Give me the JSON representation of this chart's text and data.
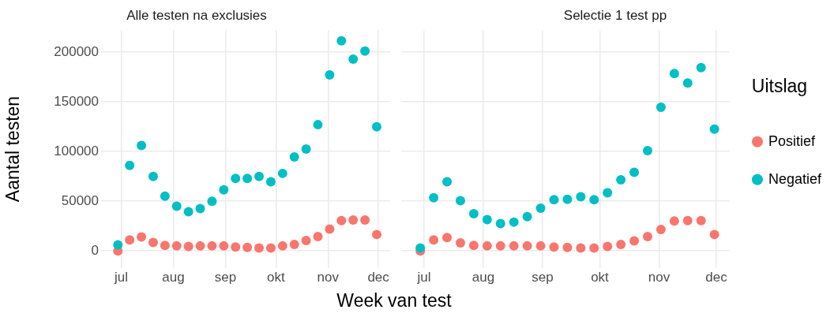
{
  "chart_data": [
    {
      "type": "scatter",
      "title": "Alle testen na exclusies",
      "ylabel": "Aantal testen",
      "xlabel": "Week van test",
      "x": [
        "--06-29",
        "--07-06",
        "--07-13",
        "--07-20",
        "--07-27",
        "--08-03",
        "--08-10",
        "--08-17",
        "--08-24",
        "--08-31",
        "--09-07",
        "--09-14",
        "--09-21",
        "--09-28",
        "--10-05",
        "--10-12",
        "--10-19",
        "--10-26",
        "--11-02",
        "--11-09",
        "--11-16",
        "--11-23",
        "--11-30"
      ],
      "series": [
        {
          "color": "#f8766d",
          "values": [
            0,
            11000,
            14000,
            8500,
            5500,
            5000,
            4500,
            5000,
            5000,
            5000,
            4000,
            3500,
            3000,
            3000,
            5000,
            6500,
            10500,
            14500,
            22000,
            30500,
            31000,
            31000,
            16500
          ]
        },
        {
          "color": "#00bfc4",
          "values": [
            6000,
            86000,
            106000,
            75000,
            55000,
            45000,
            39500,
            42500,
            50000,
            61500,
            73000,
            73000,
            75000,
            69500,
            78000,
            94500,
            102500,
            127000,
            177000,
            211500,
            193000,
            201000,
            125000
          ]
        }
      ],
      "xlim": [
        "--06-19",
        "--12-08"
      ],
      "xticks": [
        {
          "value": "--07-01",
          "label": "jul"
        },
        {
          "value": "--08-01",
          "label": "aug"
        },
        {
          "value": "--09-01",
          "label": "sep"
        },
        {
          "value": "--10-01",
          "label": "okt"
        },
        {
          "value": "--11-01",
          "label": "nov"
        },
        {
          "value": "--12-01",
          "label": "dec"
        }
      ],
      "ylim": [
        -17000,
        222000
      ],
      "yticks": [
        0,
        50000,
        100000,
        150000,
        200000
      ],
      "grid": true,
      "marker": "circle",
      "legend": false
    },
    {
      "type": "scatter",
      "title": "Selectie 1 test pp",
      "legend_title": "Uitslag",
      "x": [
        "--06-29",
        "--07-06",
        "--07-13",
        "--07-20",
        "--07-27",
        "--08-03",
        "--08-10",
        "--08-17",
        "--08-24",
        "--08-31",
        "--09-07",
        "--09-14",
        "--09-21",
        "--09-28",
        "--10-05",
        "--10-12",
        "--10-19",
        "--10-26",
        "--11-02",
        "--11-09",
        "--11-16",
        "--11-23",
        "--11-30"
      ],
      "series": [
        {
          "name": "Positief",
          "color": "#f8766d",
          "values": [
            0,
            11000,
            13500,
            8000,
            5500,
            5000,
            5000,
            5000,
            5000,
            5000,
            4000,
            3500,
            3000,
            3000,
            4500,
            6500,
            10000,
            14500,
            21500,
            30000,
            30500,
            30500,
            16500
          ]
        },
        {
          "name": "Negatief",
          "color": "#00bfc4",
          "values": [
            3000,
            53500,
            69500,
            50500,
            37500,
            31500,
            27500,
            29000,
            34500,
            43000,
            51500,
            52000,
            54500,
            51500,
            58500,
            71500,
            79000,
            101000,
            144500,
            178500,
            169000,
            184500,
            122500
          ]
        }
      ],
      "xlim": [
        "--06-19",
        "--12-08"
      ],
      "xticks": [
        {
          "value": "--07-01",
          "label": "jul"
        },
        {
          "value": "--08-01",
          "label": "aug"
        },
        {
          "value": "--09-01",
          "label": "sep"
        },
        {
          "value": "--10-01",
          "label": "okt"
        },
        {
          "value": "--11-01",
          "label": "nov"
        },
        {
          "value": "--12-01",
          "label": "dec"
        }
      ],
      "ylim": [
        -17000,
        222000
      ],
      "yticks": [
        0,
        50000,
        100000,
        150000,
        200000
      ],
      "grid": true,
      "marker": "circle",
      "legend": "right",
      "tick_labels": "x"
    }
  ]
}
